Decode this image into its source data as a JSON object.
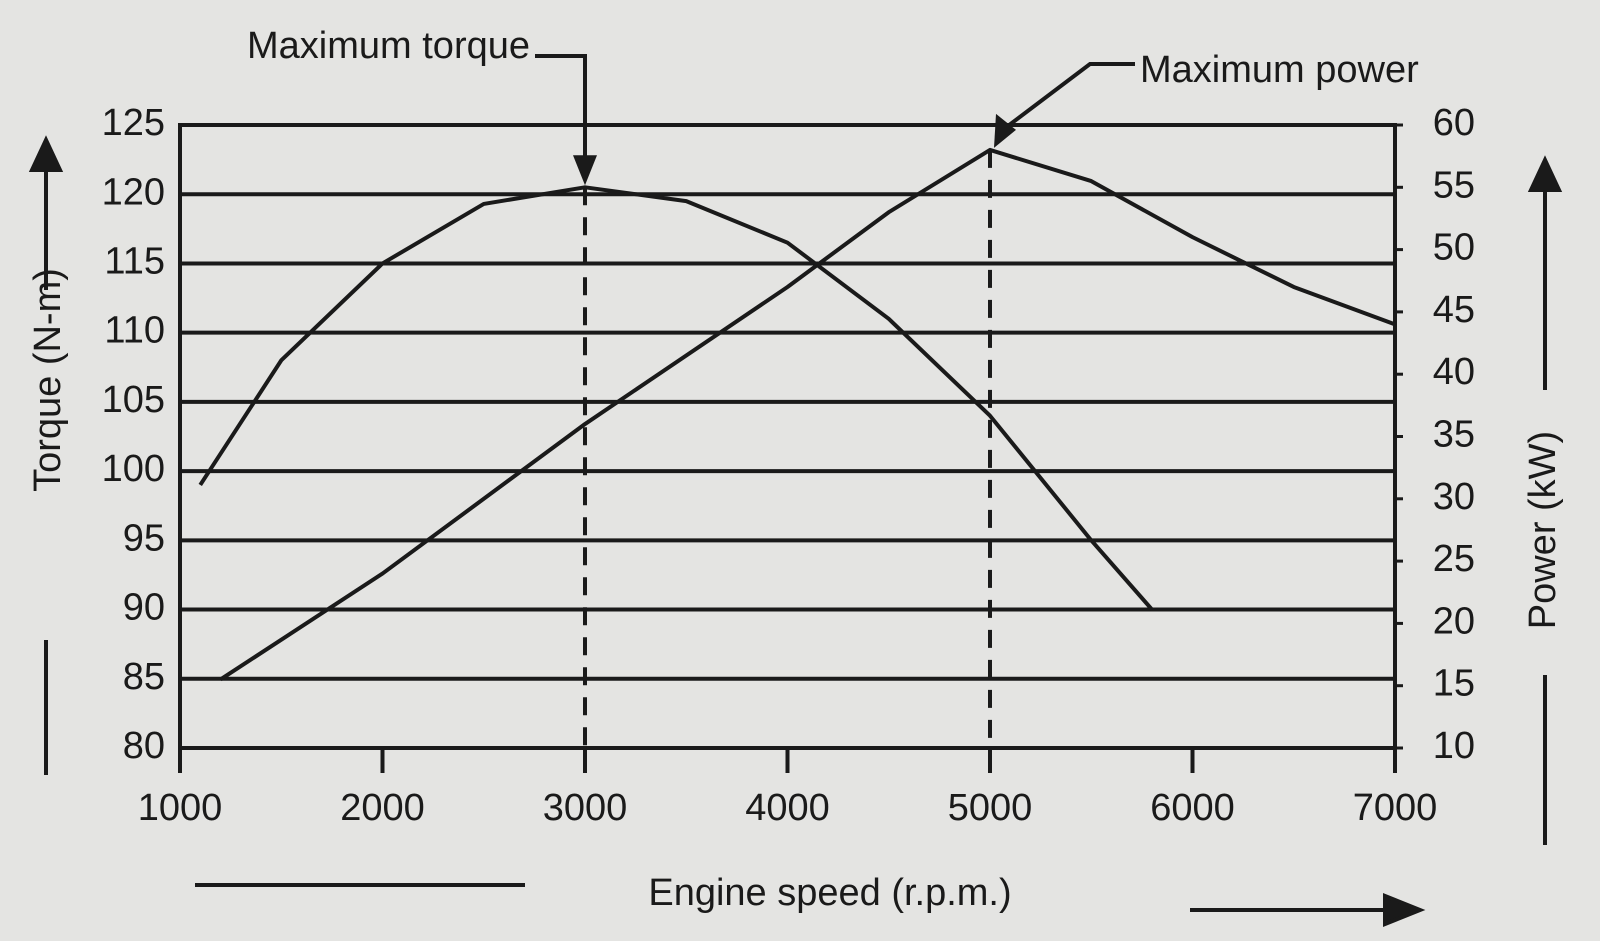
{
  "chart_data": {
    "type": "line",
    "x_label": "Engine speed (r.p.m.)",
    "y_label": "Torque (N-m)",
    "y2_label": "Power (kW)",
    "xlim": [
      1000,
      7000
    ],
    "xticks": [
      1000,
      2000,
      3000,
      4000,
      5000,
      6000,
      7000
    ],
    "ylim": [
      80,
      125
    ],
    "yticks": [
      80,
      85,
      90,
      95,
      100,
      105,
      110,
      115,
      120,
      125
    ],
    "y2lim": [
      10,
      60
    ],
    "y2ticks": [
      10,
      15,
      20,
      25,
      30,
      35,
      40,
      45,
      50,
      55,
      60
    ],
    "grid": true,
    "series": [
      {
        "color": "#1a1a1a",
        "x": [
          1100,
          1500,
          2000,
          2500,
          3000,
          3500,
          4000,
          4500,
          5000,
          5500,
          5800
        ],
        "values": [
          99,
          108,
          115,
          119.3,
          120.5,
          119.5,
          116.5,
          111,
          104,
          95,
          90
        ]
      },
      {
        "color": "#1a1a1a",
        "axis": "y2",
        "x": [
          1200,
          2000,
          3000,
          4000,
          4500,
          5000,
          5500,
          6000,
          6500,
          7000
        ],
        "values": [
          15.5,
          24,
          36,
          47,
          53,
          58,
          55.5,
          51,
          47,
          44
        ]
      }
    ],
    "annotations": [
      {
        "text": "Maximum torque",
        "x": 3000,
        "y": 120.5
      },
      {
        "text": "Maximum power",
        "x": 5000,
        "y": 58,
        "axis": "y2"
      }
    ]
  }
}
